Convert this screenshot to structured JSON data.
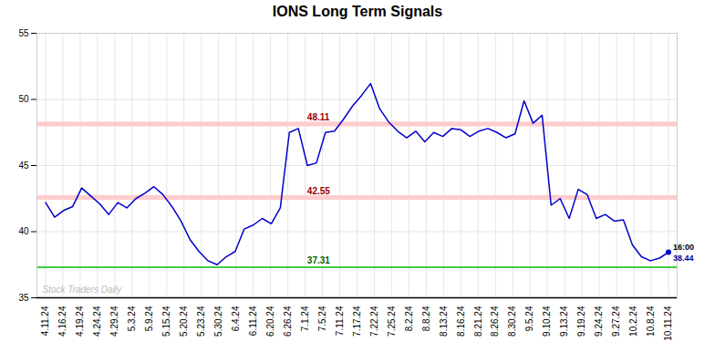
{
  "chart_data": {
    "type": "line",
    "title": "IONS Long Term Signals",
    "x": [
      0,
      0.5217,
      1.0435,
      1.5652,
      2.087,
      2.6087,
      3.1304,
      3.6522,
      4.1739,
      4.6957,
      5.2174,
      5.7391,
      6.2609,
      6.7826,
      7.3043,
      7.8261,
      8.3478,
      8.8696,
      9.3913,
      9.913,
      10.4348,
      10.9565,
      11.4783,
      12,
      12.5217,
      13.0435,
      13.5652,
      14.087,
      14.6087,
      15.1304,
      15.6522,
      16.1739,
      16.6957,
      17.2174,
      17.7391,
      18.2609,
      18.7826,
      19.3043,
      19.8261,
      20.3478,
      20.8696,
      21.3913,
      21.913,
      22.4348,
      22.9565,
      23.4783,
      24,
      24.5217,
      25.0435,
      25.5652,
      26.087,
      26.6087,
      27.1304,
      27.6522,
      28.1739,
      28.6957,
      29.2174,
      29.7391,
      30.2609,
      30.7826,
      31.3043,
      31.8261,
      32.3478,
      32.8696,
      33.3913,
      33.913,
      34.4348,
      34.9565,
      35.4783,
      36
    ],
    "values": [
      42.2,
      41.1,
      41.6,
      41.9,
      43.3,
      42.7,
      42.1,
      41.3,
      42.2,
      41.8,
      42.5,
      42.9,
      43.4,
      42.8,
      41.9,
      40.8,
      39.4,
      38.5,
      37.8,
      37.5,
      38.1,
      38.5,
      40.2,
      40.5,
      41.0,
      40.6,
      41.8,
      47.5,
      47.8,
      45.0,
      45.2,
      47.5,
      47.6,
      48.5,
      49.5,
      50.3,
      51.2,
      49.3,
      48.3,
      47.6,
      47.1,
      47.6,
      46.8,
      47.5,
      47.2,
      47.8,
      47.7,
      47.2,
      47.6,
      47.8,
      47.5,
      47.1,
      47.4,
      49.9,
      48.2,
      48.8,
      42.0,
      42.5,
      41.0,
      43.2,
      42.8,
      41.0,
      41.3,
      40.8,
      40.9,
      39.0,
      38.1,
      37.8,
      38.0,
      38.44
    ],
    "color": "#0000cc",
    "xlim": [
      -0.5,
      36.5
    ],
    "xticks": [
      {
        "value": 0,
        "label": "4.11.24"
      },
      {
        "value": 1,
        "label": "4.16.24"
      },
      {
        "value": 2,
        "label": "4.19.24"
      },
      {
        "value": 3,
        "label": "4.24.24"
      },
      {
        "value": 4,
        "label": "4.29.24"
      },
      {
        "value": 5,
        "label": "5.3.24"
      },
      {
        "value": 6,
        "label": "5.9.24"
      },
      {
        "value": 7,
        "label": "5.15.24"
      },
      {
        "value": 8,
        "label": "5.20.24"
      },
      {
        "value": 9,
        "label": "5.23.24"
      },
      {
        "value": 10,
        "label": "5.30.24"
      },
      {
        "value": 11,
        "label": "6.4.24"
      },
      {
        "value": 12,
        "label": "6.11.24"
      },
      {
        "value": 13,
        "label": "6.20.24"
      },
      {
        "value": 14,
        "label": "6.26.24"
      },
      {
        "value": 15,
        "label": "7.1.24"
      },
      {
        "value": 16,
        "label": "7.5.24"
      },
      {
        "value": 17,
        "label": "7.11.24"
      },
      {
        "value": 18,
        "label": "7.17.24"
      },
      {
        "value": 19,
        "label": "7.22.24"
      },
      {
        "value": 20,
        "label": "7.25.24"
      },
      {
        "value": 21,
        "label": "8.2.24"
      },
      {
        "value": 22,
        "label": "8.8.24"
      },
      {
        "value": 23,
        "label": "8.13.24"
      },
      {
        "value": 24,
        "label": "8.16.24"
      },
      {
        "value": 25,
        "label": "8.21.24"
      },
      {
        "value": 26,
        "label": "8.26.24"
      },
      {
        "value": 27,
        "label": "8.30.24"
      },
      {
        "value": 28,
        "label": "9.5.24"
      },
      {
        "value": 29,
        "label": "9.10.24"
      },
      {
        "value": 30,
        "label": "9.13.24"
      },
      {
        "value": 31,
        "label": "9.19.24"
      },
      {
        "value": 32,
        "label": "9.24.24"
      },
      {
        "value": 33,
        "label": "9.27.24"
      },
      {
        "value": 34,
        "label": "10.2.24"
      },
      {
        "value": 35,
        "label": "10.8.24"
      },
      {
        "value": 36,
        "label": "10.11.24"
      }
    ],
    "ylim": [
      35,
      55
    ],
    "yticks": [
      35,
      40,
      45,
      50,
      55
    ],
    "grid": true,
    "reference_lines": [
      {
        "type": "band",
        "value": 48.11,
        "half_width": 0.18,
        "color": "#ffcccc",
        "label": "48.11",
        "label_color": "#990000"
      },
      {
        "type": "band",
        "value": 42.55,
        "half_width": 0.18,
        "color": "#ffcccc",
        "label": "42.55",
        "label_color": "#990000"
      },
      {
        "type": "line",
        "value": 37.31,
        "color": "#44cc44",
        "label": "37.31",
        "label_color": "#006600"
      }
    ],
    "end_labels": [
      {
        "text": "16:00",
        "color": "#000000"
      },
      {
        "text": "38.44",
        "color": "#000099"
      }
    ],
    "watermark": {
      "text": "Stock Traders Daily",
      "color": "#bbbbbb"
    }
  }
}
